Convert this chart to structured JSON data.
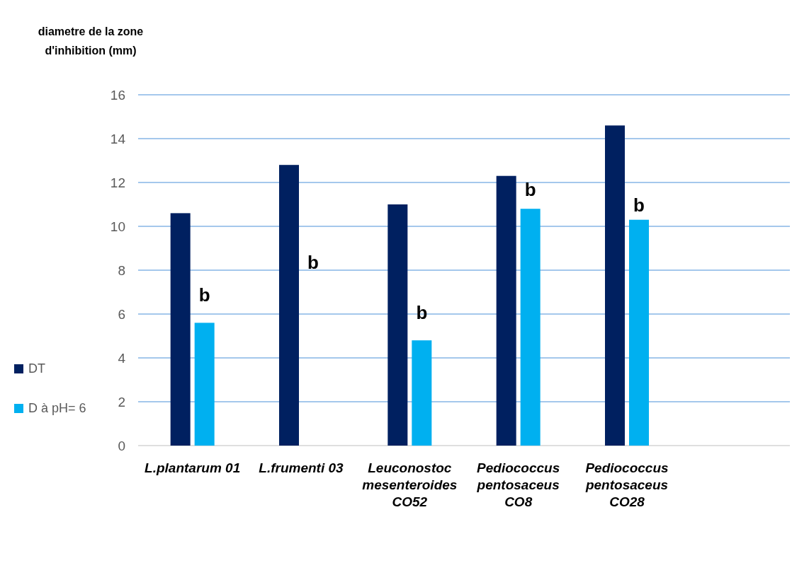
{
  "chart_data": {
    "type": "bar",
    "ylabel": "diametre de la zone d'inhibition (mm)",
    "categories": [
      "L.plantarum 01",
      "L.frumenti 03",
      "Leuconostoc mesenteroides CO52",
      "Pediococcus pentosaceus CO8",
      "Pediococcus pentosaceus CO28",
      null
    ],
    "series": [
      {
        "name": "DT",
        "color": "#002060",
        "values": [
          10.6,
          12.8,
          11.0,
          12.3,
          14.6,
          null
        ]
      },
      {
        "name": "D à pH= 6",
        "color": "#00b0f0",
        "values": [
          5.6,
          null,
          4.8,
          10.8,
          10.3,
          null
        ]
      }
    ],
    "ylim": [
      0,
      16
    ],
    "yticks": [
      0,
      2,
      4,
      6,
      8,
      10,
      12,
      14,
      16
    ],
    "grid": "y",
    "legend": "left",
    "annotations": [
      {
        "text": "b",
        "x": "L.plantarum 01",
        "y": 6.8
      },
      {
        "text": "b",
        "x": "L.frumenti 03",
        "y": 8.3
      },
      {
        "text": "b",
        "x": "Leuconostoc mesenteroides CO52",
        "y": 6.0
      },
      {
        "text": "b",
        "x": "Pediococcus pentosaceus CO8",
        "y": 11.6
      },
      {
        "text": "b",
        "x": "Pediococcus pentosaceus CO28",
        "y": 10.9
      }
    ]
  }
}
